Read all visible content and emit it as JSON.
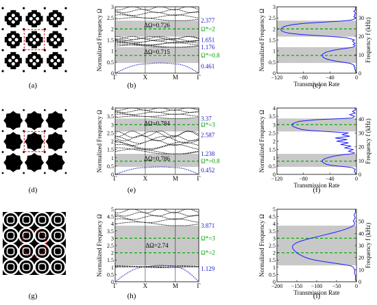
{
  "figure": {
    "panel_labels": [
      "(a)",
      "(b)",
      "(c)",
      "(d)",
      "(e)",
      "(f)",
      "(g)",
      "(h)",
      "(i)"
    ],
    "colors": {
      "bulk": "#000000",
      "band_curve": "#000000",
      "band_first": "#1f1fd0",
      "transmission": "#1a1aff",
      "target_line": "#00b000",
      "gap_fill": "#c8c8c8",
      "value_text": "#1a1acc",
      "gap_target_text": "#00a000",
      "unit_cell_box": "#d00000"
    },
    "band_structures": [
      {
        "ylabel": "Normalized Frequency Ω",
        "k_labels": [
          "Γ",
          "X",
          "M",
          "Γ"
        ],
        "ylim": [
          0,
          3
        ],
        "yticks": [
          "0",
          "0.5",
          "1",
          "1.5",
          "2",
          "2.5",
          "3"
        ],
        "gaps": [
          {
            "lower": 1.651,
            "upper": 2.377,
            "label": "ΔΩ=0.726",
            "target_label": "Ω*=2",
            "target": 2.0,
            "lower_label": "1.651",
            "upper_label": "2.377"
          },
          {
            "lower": 0.461,
            "upper": 1.176,
            "label": "ΔΩ=0.715",
            "target_label": "Ω*=0.8",
            "target": 0.8,
            "lower_label": "0.461",
            "upper_label": "1.176"
          }
        ]
      },
      {
        "ylabel": "Normalized Frequency Ω",
        "k_labels": [
          "Γ",
          "X",
          "M",
          "Γ"
        ],
        "ylim": [
          0,
          4
        ],
        "yticks": [
          "0",
          "0.5",
          "1",
          "1.5",
          "2",
          "2.5",
          "3",
          "3.5",
          "4"
        ],
        "gaps": [
          {
            "lower": 2.587,
            "upper": 3.37,
            "label": "ΔΩ=0.784",
            "target_label": "Ω*=3",
            "target": 3.0,
            "lower_label": "2.587",
            "upper_label": "3.37"
          },
          {
            "lower": 0.452,
            "upper": 1.238,
            "label": "ΔΩ=0.786",
            "target_label": "Ω*=0.8",
            "target": 0.8,
            "lower_label": "0.452",
            "upper_label": "1.238"
          }
        ]
      },
      {
        "ylabel": "Normalized Frequency Ω",
        "k_labels": [
          "Γ",
          "X",
          "M",
          "Γ"
        ],
        "ylim": [
          0,
          5
        ],
        "yticks": [
          "0",
          "0.5",
          "1",
          "1.5",
          "2",
          "2.5",
          "3",
          "3.5",
          "4",
          "4.5",
          "5"
        ],
        "gaps": [
          {
            "lower": 1.129,
            "upper": 3.871,
            "label": "ΔΩ=2.74",
            "target_label": "",
            "target": null,
            "lower_label": "1.129",
            "upper_label": "3.871"
          }
        ],
        "extra_targets": [
          {
            "value": 3.0,
            "label": "Ω*=3"
          },
          {
            "value": 2.0,
            "label": "Ω*=2"
          }
        ]
      }
    ],
    "transmissions": [
      {
        "xlabel": "Transmission Rate",
        "ylabel_left": "Normalized Frequency Ω",
        "ylabel_right": "Frequency f (kHz)",
        "xlim": [
          -120,
          0
        ],
        "xticks": [
          "−120",
          "−80",
          "−40",
          "0"
        ],
        "xtick_values": [
          -120,
          -80,
          -40,
          0
        ],
        "ylim": [
          0,
          3
        ],
        "yticks": [
          "0",
          "0.5",
          "1",
          "1.5",
          "2",
          "2.5",
          "3"
        ],
        "right_ylim": [
          0,
          36
        ],
        "right_yticks": [
          "0",
          "10",
          "20",
          "30"
        ],
        "right_ytick_values": [
          0,
          10,
          20,
          30
        ],
        "gaps": [
          [
            0.461,
            1.176
          ],
          [
            1.651,
            2.377
          ]
        ],
        "targets": [
          0.8,
          2.0
        ],
        "curve": [
          [
            0,
            0
          ],
          [
            0.05,
            -1
          ],
          [
            0.1,
            -2
          ],
          [
            0.15,
            -1
          ],
          [
            0.2,
            -3
          ],
          [
            0.25,
            -2
          ],
          [
            0.3,
            -4
          ],
          [
            0.35,
            -3
          ],
          [
            0.4,
            -6
          ],
          [
            0.45,
            -10
          ],
          [
            0.5,
            -22
          ],
          [
            0.55,
            -32
          ],
          [
            0.6,
            -40
          ],
          [
            0.65,
            -46
          ],
          [
            0.7,
            -49
          ],
          [
            0.75,
            -51
          ],
          [
            0.8,
            -52
          ],
          [
            0.85,
            -51
          ],
          [
            0.9,
            -49
          ],
          [
            0.95,
            -46
          ],
          [
            1.0,
            -40
          ],
          [
            1.05,
            -32
          ],
          [
            1.1,
            -22
          ],
          [
            1.15,
            -10
          ],
          [
            1.2,
            -3
          ],
          [
            1.25,
            -2
          ],
          [
            1.3,
            -5
          ],
          [
            1.35,
            -2
          ],
          [
            1.4,
            -4
          ],
          [
            1.45,
            -6
          ],
          [
            1.5,
            -3
          ],
          [
            1.55,
            -8
          ],
          [
            1.6,
            -15
          ],
          [
            1.65,
            -32
          ],
          [
            1.7,
            -60
          ],
          [
            1.75,
            -85
          ],
          [
            1.8,
            -100
          ],
          [
            1.85,
            -108
          ],
          [
            1.9,
            -112
          ],
          [
            1.95,
            -114
          ],
          [
            2.0,
            -114
          ],
          [
            2.05,
            -112
          ],
          [
            2.1,
            -110
          ],
          [
            2.15,
            -104
          ],
          [
            2.2,
            -95
          ],
          [
            2.25,
            -80
          ],
          [
            2.3,
            -55
          ],
          [
            2.35,
            -25
          ],
          [
            2.4,
            -8
          ],
          [
            2.45,
            -3
          ],
          [
            2.5,
            -1
          ],
          [
            2.55,
            -4
          ],
          [
            2.6,
            -2
          ],
          [
            2.65,
            -3
          ],
          [
            2.7,
            -1
          ],
          [
            2.75,
            -2
          ],
          [
            2.8,
            -4
          ],
          [
            2.85,
            -1
          ],
          [
            2.9,
            -2
          ],
          [
            2.95,
            -1
          ],
          [
            3.0,
            -2
          ]
        ]
      },
      {
        "xlabel": "Transmission Rate",
        "ylabel_left": "Normalized Frequency Ω",
        "ylabel_right": "Frequency f (kHz)",
        "xlim": [
          -120,
          0
        ],
        "xticks": [
          "−120",
          "−80",
          "−40",
          "0"
        ],
        "xtick_values": [
          -120,
          -80,
          -40,
          0
        ],
        "ylim": [
          0,
          4
        ],
        "yticks": [
          "0",
          "0.5",
          "1",
          "1.5",
          "2",
          "2.5",
          "3",
          "3.5",
          "4"
        ],
        "right_ylim": [
          0,
          48
        ],
        "right_yticks": [
          "0",
          "10",
          "20",
          "30",
          "40"
        ],
        "right_ytick_values": [
          0,
          10,
          20,
          30,
          40
        ],
        "gaps": [
          [
            0.452,
            1.238
          ],
          [
            2.587,
            3.37
          ]
        ],
        "targets": [
          0.8,
          3.0
        ],
        "curve": [
          [
            0,
            0
          ],
          [
            0.1,
            -2
          ],
          [
            0.2,
            -3
          ],
          [
            0.3,
            -2
          ],
          [
            0.4,
            -6
          ],
          [
            0.45,
            -14
          ],
          [
            0.5,
            -28
          ],
          [
            0.55,
            -38
          ],
          [
            0.6,
            -45
          ],
          [
            0.7,
            -50
          ],
          [
            0.8,
            -52
          ],
          [
            0.9,
            -50
          ],
          [
            1.0,
            -44
          ],
          [
            1.1,
            -34
          ],
          [
            1.2,
            -18
          ],
          [
            1.25,
            -4
          ],
          [
            1.3,
            -3
          ],
          [
            1.4,
            -12
          ],
          [
            1.5,
            -5
          ],
          [
            1.6,
            -18
          ],
          [
            1.7,
            -8
          ],
          [
            1.8,
            -24
          ],
          [
            1.9,
            -12
          ],
          [
            2.0,
            -30
          ],
          [
            2.1,
            -14
          ],
          [
            2.2,
            -32
          ],
          [
            2.3,
            -10
          ],
          [
            2.4,
            -22
          ],
          [
            2.5,
            -12
          ],
          [
            2.55,
            -30
          ],
          [
            2.6,
            -52
          ],
          [
            2.65,
            -70
          ],
          [
            2.7,
            -82
          ],
          [
            2.8,
            -90
          ],
          [
            2.9,
            -96
          ],
          [
            3.0,
            -98
          ],
          [
            3.1,
            -94
          ],
          [
            3.2,
            -86
          ],
          [
            3.3,
            -60
          ],
          [
            3.35,
            -30
          ],
          [
            3.4,
            -6
          ],
          [
            3.5,
            -3
          ],
          [
            3.6,
            -10
          ],
          [
            3.7,
            -2
          ],
          [
            3.8,
            -6
          ],
          [
            3.9,
            -1
          ],
          [
            4.0,
            -3
          ]
        ]
      },
      {
        "xlabel": "Transmission Rate",
        "ylabel_left": "Normalized Frequency Ω",
        "ylabel_right": "Frequency f (kHz)",
        "xlim": [
          -200,
          0
        ],
        "xticks": [
          "−200",
          "−150",
          "−100",
          "−50",
          "0"
        ],
        "xtick_values": [
          -200,
          -150,
          -100,
          -50,
          0
        ],
        "ylim": [
          0,
          5
        ],
        "yticks": [
          "0",
          "0.5",
          "1",
          "1.5",
          "2",
          "2.5",
          "3",
          "3.5",
          "4",
          "4.5",
          "5"
        ],
        "right_ylim": [
          0,
          60
        ],
        "right_yticks": [
          "0",
          "10",
          "20",
          "30",
          "40",
          "50"
        ],
        "right_ytick_values": [
          0,
          10,
          20,
          30,
          40,
          50
        ],
        "gaps": [
          [
            1.129,
            3.871
          ]
        ],
        "targets": [
          2.0,
          3.0
        ],
        "curve": [
          [
            0,
            0
          ],
          [
            0.2,
            -3
          ],
          [
            0.4,
            -2
          ],
          [
            0.6,
            -5
          ],
          [
            0.8,
            -4
          ],
          [
            1.0,
            -8
          ],
          [
            1.1,
            -14
          ],
          [
            1.2,
            -35
          ],
          [
            1.3,
            -60
          ],
          [
            1.4,
            -85
          ],
          [
            1.5,
            -105
          ],
          [
            1.6,
            -120
          ],
          [
            1.7,
            -130
          ],
          [
            1.8,
            -138
          ],
          [
            1.9,
            -145
          ],
          [
            2.0,
            -150
          ],
          [
            2.1,
            -154
          ],
          [
            2.2,
            -158
          ],
          [
            2.3,
            -160
          ],
          [
            2.4,
            -161
          ],
          [
            2.5,
            -160
          ],
          [
            2.6,
            -156
          ],
          [
            2.7,
            -150
          ],
          [
            2.8,
            -140
          ],
          [
            2.9,
            -128
          ],
          [
            3.0,
            -115
          ],
          [
            3.1,
            -100
          ],
          [
            3.2,
            -85
          ],
          [
            3.3,
            -70
          ],
          [
            3.4,
            -55
          ],
          [
            3.5,
            -42
          ],
          [
            3.6,
            -30
          ],
          [
            3.7,
            -20
          ],
          [
            3.8,
            -12
          ],
          [
            3.9,
            -6
          ],
          [
            4.0,
            -4
          ],
          [
            4.2,
            -8
          ],
          [
            4.4,
            -3
          ],
          [
            4.6,
            -6
          ],
          [
            4.8,
            -2
          ],
          [
            5.0,
            -3
          ]
        ]
      }
    ]
  }
}
